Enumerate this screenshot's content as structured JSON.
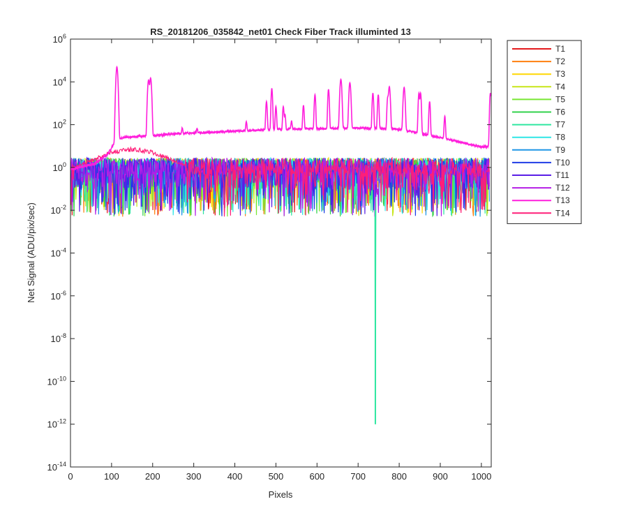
{
  "chart_data": {
    "type": "line",
    "title": "RS_20181206_035842_net01   Check Fiber     Track illuminted 13",
    "xlabel": "Pixels",
    "ylabel": "Net Signal (ADU/pix/sec)",
    "xlim": [
      0,
      1024
    ],
    "ylim": [
      1e-14,
      1000000.0
    ],
    "y_scale": "log",
    "grid": false,
    "legend_position": "outside-right",
    "x_ticks": [
      0,
      100,
      200,
      300,
      400,
      500,
      600,
      700,
      800,
      900,
      1000
    ],
    "x_tick_labels": [
      "0",
      "100",
      "200",
      "300",
      "400",
      "500",
      "600",
      "700",
      "800",
      "900",
      "1000"
    ],
    "y_ticks": [
      {
        "base": "10",
        "exp": "6",
        "value": 1000000.0
      },
      {
        "base": "10",
        "exp": "4",
        "value": 10000.0
      },
      {
        "base": "10",
        "exp": "2",
        "value": 100.0
      },
      {
        "base": "10",
        "exp": "0",
        "value": 1
      },
      {
        "base": "10",
        "exp": "-2",
        "value": 0.01
      },
      {
        "base": "10",
        "exp": "-4",
        "value": 0.0001
      },
      {
        "base": "10",
        "exp": "-6",
        "value": 1e-06
      },
      {
        "base": "10",
        "exp": "-8",
        "value": 1e-08
      },
      {
        "base": "10",
        "exp": "-10",
        "value": 1e-10
      },
      {
        "base": "10",
        "exp": "-12",
        "value": 1e-12
      },
      {
        "base": "10",
        "exp": "-14",
        "value": 1e-14
      }
    ],
    "illuminated_track": {
      "name": "T13",
      "baseline": [
        [
          0,
          0.8
        ],
        [
          60,
          1.5
        ],
        [
          90,
          4
        ],
        [
          105,
          12
        ],
        [
          115,
          20
        ],
        [
          130,
          25
        ],
        [
          160,
          28
        ],
        [
          200,
          30
        ],
        [
          260,
          38
        ],
        [
          350,
          45
        ],
        [
          450,
          55
        ],
        [
          500,
          60
        ],
        [
          600,
          65
        ],
        [
          700,
          70
        ],
        [
          760,
          66
        ],
        [
          800,
          60
        ],
        [
          850,
          40
        ],
        [
          900,
          25
        ],
        [
          950,
          15
        ],
        [
          1000,
          9
        ],
        [
          1018,
          10
        ]
      ],
      "peaks": [
        {
          "x": 113,
          "y": 50000
        },
        {
          "x": 190,
          "y": 12000
        },
        {
          "x": 195,
          "y": 15000
        },
        {
          "x": 272,
          "y": 70
        },
        {
          "x": 308,
          "y": 70
        },
        {
          "x": 428,
          "y": 140
        },
        {
          "x": 477,
          "y": 1200
        },
        {
          "x": 490,
          "y": 5000
        },
        {
          "x": 500,
          "y": 700
        },
        {
          "x": 518,
          "y": 700
        },
        {
          "x": 522,
          "y": 300
        },
        {
          "x": 538,
          "y": 150
        },
        {
          "x": 567,
          "y": 800
        },
        {
          "x": 595,
          "y": 2500
        },
        {
          "x": 628,
          "y": 4500
        },
        {
          "x": 658,
          "y": 13000
        },
        {
          "x": 680,
          "y": 9000
        },
        {
          "x": 736,
          "y": 3000
        },
        {
          "x": 749,
          "y": 2500
        },
        {
          "x": 772,
          "y": 1800
        },
        {
          "x": 776,
          "y": 6000
        },
        {
          "x": 812,
          "y": 5500
        },
        {
          "x": 848,
          "y": 3000
        },
        {
          "x": 852,
          "y": 3000
        },
        {
          "x": 874,
          "y": 1200
        },
        {
          "x": 911,
          "y": 250
        },
        {
          "x": 1022,
          "y": 3000
        }
      ]
    },
    "noise_tracks": {
      "level_range": [
        0.01,
        3
      ],
      "notes": "Tracks T1-T12 and T14 are noise around 1 with dips to about 0.005"
    },
    "anomaly": {
      "series": "T7",
      "x": 742,
      "y": 1e-12
    },
    "series": [
      {
        "name": "T1",
        "color": "#e41a1c"
      },
      {
        "name": "T2",
        "color": "#ff7f0e"
      },
      {
        "name": "T3",
        "color": "#ffd700"
      },
      {
        "name": "T4",
        "color": "#c8e619"
      },
      {
        "name": "T5",
        "color": "#78e632"
      },
      {
        "name": "T6",
        "color": "#32d24b"
      },
      {
        "name": "T7",
        "color": "#2ee6a0"
      },
      {
        "name": "T8",
        "color": "#2ee6e6"
      },
      {
        "name": "T9",
        "color": "#1e96e6"
      },
      {
        "name": "T10",
        "color": "#1e3ce6"
      },
      {
        "name": "T11",
        "color": "#5a1ee6"
      },
      {
        "name": "T12",
        "color": "#b41ee6"
      },
      {
        "name": "T13",
        "color": "#ff1edc"
      },
      {
        "name": "T14",
        "color": "#ff1e78"
      }
    ]
  }
}
